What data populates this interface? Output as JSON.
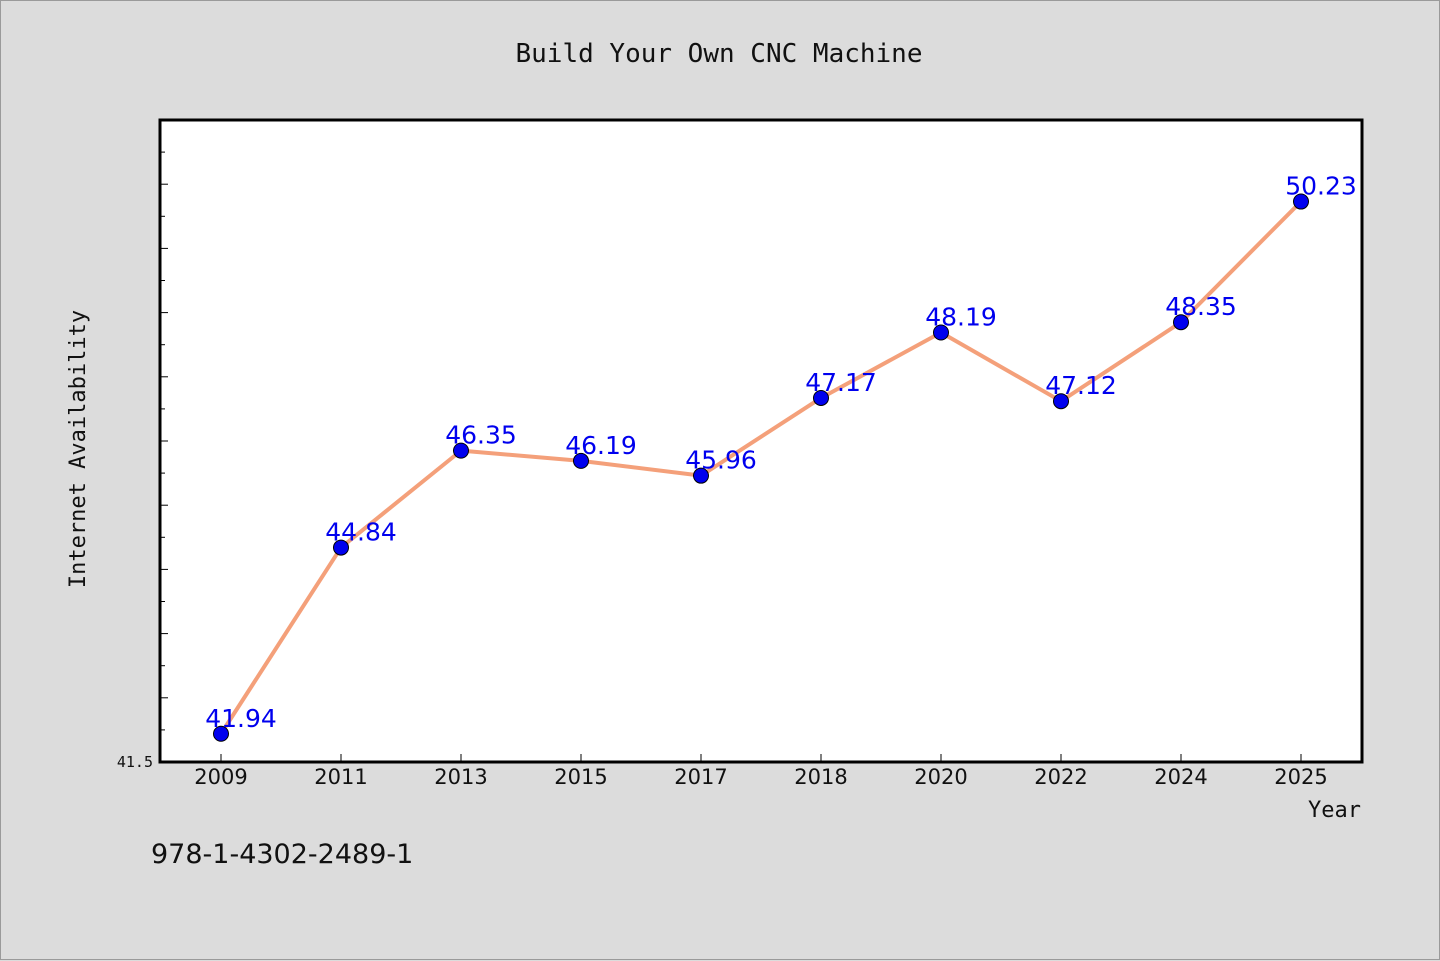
{
  "chart_data": {
    "type": "line",
    "title": "Build Your Own CNC Machine",
    "xlabel": "Year",
    "ylabel": "Internet Availability",
    "categories": [
      "2009",
      "2011",
      "2013",
      "2015",
      "2017",
      "2018",
      "2020",
      "2022",
      "2024",
      "2025"
    ],
    "series": [
      {
        "values": [
          41.94,
          44.84,
          46.35,
          46.19,
          45.96,
          47.17,
          48.19,
          47.12,
          48.35,
          50.23
        ]
      }
    ],
    "data_labels": [
      "41.94",
      "44.84",
      "46.35",
      "46.19",
      "45.96",
      "47.17",
      "48.19",
      "47.12",
      "48.35",
      "50.23"
    ],
    "ylim": [
      41.5,
      51.5
    ],
    "y_min_label": "41.5",
    "grid": false,
    "legend": "none",
    "line_color": "#f4a07a",
    "marker_color": "#0000ee"
  },
  "footnote": "978-1-4302-2489-1"
}
